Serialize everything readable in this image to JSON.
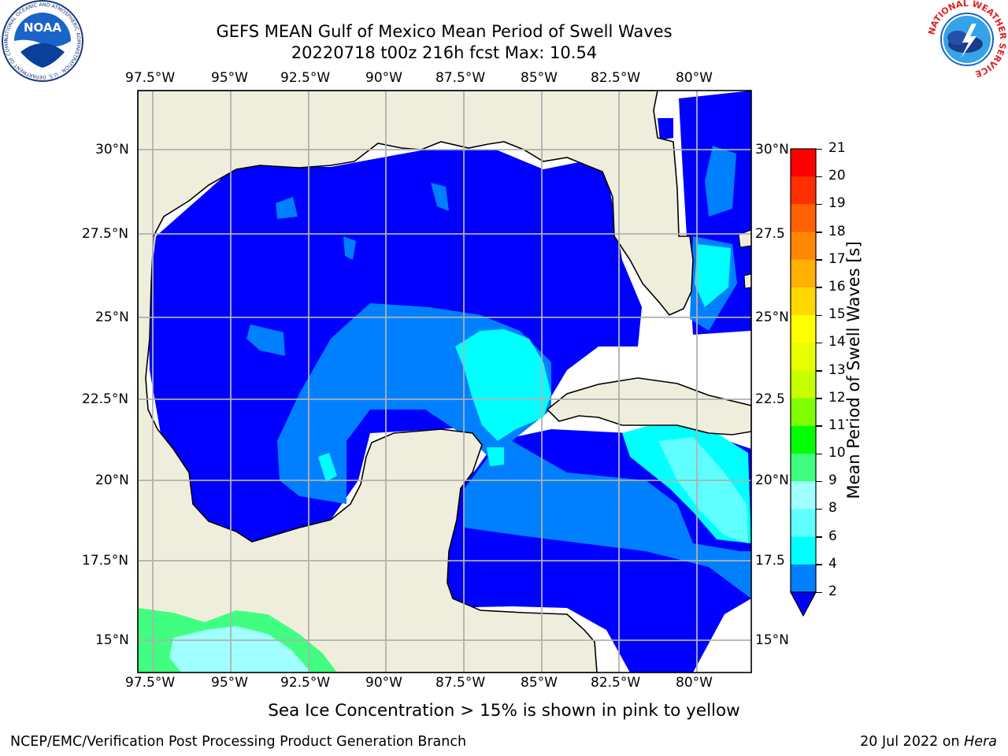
{
  "header": {
    "title_line1": "GEFS MEAN Gulf of Mexico Mean Period of Swell Waves",
    "title_line2": "20220718 t00z 216h fcst   Max: 10.54"
  },
  "logos": {
    "left": "NOAA",
    "left_ring": "NATIONAL OCEANIC AND ATMOSPHERIC ADMINISTRATION · U.S. DEPARTMENT OF COMMERCE",
    "right_ring": "NATIONAL WEATHER SERVICE"
  },
  "map": {
    "lon_labels": [
      "97.5°W",
      "95°W",
      "92.5°W",
      "90°W",
      "87.5°W",
      "85°W",
      "82.5°W",
      "80°W"
    ],
    "lat_labels": [
      "30°N",
      "27.5°N",
      "25°N",
      "22.5°N",
      "20°N",
      "17.5°N",
      "15°N"
    ],
    "lat_labels_right": [
      "30°N",
      "27.5",
      "25°N",
      "22.5",
      "20°N",
      "17.5",
      "15°N"
    ],
    "colors": {
      "land": "#efeedd",
      "water_low": "#0000ff",
      "water_mid": "#0080ff",
      "water_high": "#00ffff"
    }
  },
  "colorbar": {
    "label": "Mean Period of Swell Waves [s]",
    "ticks": [
      "21",
      "20",
      "19",
      "18",
      "17",
      "16",
      "15",
      "14",
      "13",
      "12",
      "11",
      "10",
      "9",
      "8",
      "6",
      "4",
      "2"
    ],
    "colors": [
      "#ff0000",
      "#ff3000",
      "#ff6000",
      "#ff8800",
      "#ffb000",
      "#ffd800",
      "#ffff00",
      "#e8ff00",
      "#c8ff00",
      "#80ff00",
      "#00ff00",
      "#40ff80",
      "#a0ffff",
      "#60ffff",
      "#00ffff",
      "#0080ff"
    ],
    "extend_color": "#0000ff"
  },
  "note": "Sea Ice Concentration > 15% is shown in pink to yellow",
  "footer": {
    "left": "NCEP/EMC/Verification Post Processing Product Generation Branch",
    "right_prefix": "20 Jul 2022 on ",
    "right_host": "Hera"
  }
}
